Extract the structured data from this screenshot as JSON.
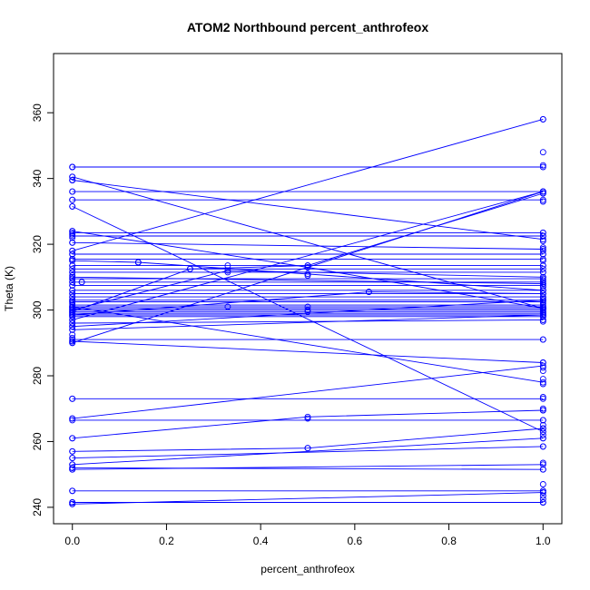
{
  "chart_data": {
    "type": "line",
    "title": "ATOM2 Northbound percent_anthrofeox",
    "xlabel": "percent_anthrofeox",
    "ylabel": "Theta (K)",
    "xlim": [
      -0.04,
      1.04
    ],
    "ylim": [
      235,
      378
    ],
    "xticks": [
      0.0,
      0.2,
      0.4,
      0.6,
      0.8,
      1.0
    ],
    "xtick_labels": [
      "0.0",
      "0.2",
      "0.4",
      "0.6",
      "0.8",
      "1.0"
    ],
    "yticks": [
      240,
      260,
      280,
      300,
      320,
      340,
      360
    ],
    "ytick_labels": [
      "240",
      "260",
      "280",
      "300",
      "320",
      "340",
      "360"
    ],
    "grid": false,
    "color": "#0000ff",
    "series": [
      {
        "x": [
          0,
          1
        ],
        "y": [
          343.5,
          343.5
        ]
      },
      {
        "x": [
          0,
          1
        ],
        "y": [
          340.5,
          300.5
        ]
      },
      {
        "x": [
          0,
          1
        ],
        "y": [
          339.5,
          321.5
        ]
      },
      {
        "x": [
          0,
          1
        ],
        "y": [
          336,
          336
        ]
      },
      {
        "x": [
          0,
          1
        ],
        "y": [
          333.5,
          333.5
        ]
      },
      {
        "x": [
          0,
          1
        ],
        "y": [
          331.5,
          263
        ]
      },
      {
        "x": [
          0,
          0.5,
          1
        ],
        "y": [
          324,
          313,
          300.5
        ]
      },
      {
        "x": [
          0,
          1
        ],
        "y": [
          323.5,
          323.5
        ]
      },
      {
        "x": [
          0,
          1
        ],
        "y": [
          322.5,
          322.5
        ]
      },
      {
        "x": [
          0,
          1
        ],
        "y": [
          320.5,
          318.5
        ]
      },
      {
        "x": [
          0,
          1
        ],
        "y": [
          318,
          358
        ]
      },
      {
        "x": [
          0,
          1
        ],
        "y": [
          317,
          317
        ]
      },
      {
        "x": [
          0,
          1
        ],
        "y": [
          315.5,
          315.5
        ]
      },
      {
        "x": [
          0,
          0.14,
          1
        ],
        "y": [
          315,
          314.5,
          306
        ]
      },
      {
        "x": [
          0,
          1
        ],
        "y": [
          313.5,
          313.5
        ]
      },
      {
        "x": [
          0,
          1
        ],
        "y": [
          312.5,
          312.5
        ]
      },
      {
        "x": [
          0,
          1
        ],
        "y": [
          311.5,
          311.5
        ]
      },
      {
        "x": [
          0,
          1
        ],
        "y": [
          310,
          308
        ]
      },
      {
        "x": [
          0,
          1
        ],
        "y": [
          309.5,
          309.5
        ]
      },
      {
        "x": [
          0,
          0.02,
          1
        ],
        "y": [
          308.5,
          308.5,
          308.5
        ]
      },
      {
        "x": [
          0,
          1
        ],
        "y": [
          307.5,
          307.5
        ]
      },
      {
        "x": [
          0,
          1
        ],
        "y": [
          306,
          306
        ]
      },
      {
        "x": [
          0,
          1
        ],
        "y": [
          305,
          305
        ]
      },
      {
        "x": [
          0,
          1
        ],
        "y": [
          304,
          304
        ]
      },
      {
        "x": [
          0,
          1
        ],
        "y": [
          303,
          303
        ]
      },
      {
        "x": [
          0,
          1
        ],
        "y": [
          302.5,
          302.5
        ]
      },
      {
        "x": [
          0,
          1
        ],
        "y": [
          301.5,
          301.5
        ]
      },
      {
        "x": [
          0,
          1
        ],
        "y": [
          301,
          301
        ]
      },
      {
        "x": [
          0,
          1
        ],
        "y": [
          300.5,
          300.5
        ]
      },
      {
        "x": [
          0,
          1
        ],
        "y": [
          300,
          300
        ]
      },
      {
        "x": [
          0,
          1
        ],
        "y": [
          299.5,
          299.5
        ]
      },
      {
        "x": [
          0,
          1
        ],
        "y": [
          299,
          299
        ]
      },
      {
        "x": [
          0,
          1
        ],
        "y": [
          298.5,
          298.5
        ]
      },
      {
        "x": [
          0,
          1
        ],
        "y": [
          298,
          298
        ]
      },
      {
        "x": [
          0,
          1
        ],
        "y": [
          297,
          336
        ]
      },
      {
        "x": [
          0,
          0.25,
          0.5,
          1
        ],
        "y": [
          299.5,
          312.5,
          313.5,
          335.5
        ]
      },
      {
        "x": [
          0,
          0.33,
          1
        ],
        "y": [
          300,
          312,
          310
        ]
      },
      {
        "x": [
          0,
          0.63,
          1
        ],
        "y": [
          298.5,
          305.5,
          305
        ]
      },
      {
        "x": [
          0,
          1
        ],
        "y": [
          296,
          297
        ]
      },
      {
        "x": [
          0,
          1
        ],
        "y": [
          295,
          303
        ]
      },
      {
        "x": [
          0,
          1
        ],
        "y": [
          294,
          298.5
        ]
      },
      {
        "x": [
          0,
          1
        ],
        "y": [
          291,
          291
        ]
      },
      {
        "x": [
          0,
          1
        ],
        "y": [
          290.5,
          284
        ]
      },
      {
        "x": [
          0,
          1
        ],
        "y": [
          290,
          336
        ]
      },
      {
        "x": [
          0,
          1
        ],
        "y": [
          301,
          278
        ]
      },
      {
        "x": [
          0,
          1
        ],
        "y": [
          273,
          273
        ]
      },
      {
        "x": [
          0,
          1
        ],
        "y": [
          267,
          283
        ]
      },
      {
        "x": [
          0,
          0.5,
          1
        ],
        "y": [
          261,
          267.5,
          269.5
        ]
      },
      {
        "x": [
          0,
          1
        ],
        "y": [
          266.5,
          266.5
        ]
      },
      {
        "x": [
          0,
          0.5,
          1
        ],
        "y": [
          257,
          258,
          264
        ]
      },
      {
        "x": [
          0,
          1
        ],
        "y": [
          255,
          258.5
        ]
      },
      {
        "x": [
          0,
          1
        ],
        "y": [
          253,
          261
        ]
      },
      {
        "x": [
          0,
          1
        ],
        "y": [
          252,
          251.5
        ]
      },
      {
        "x": [
          0,
          1
        ],
        "y": [
          251.5,
          253
        ]
      },
      {
        "x": [
          0,
          1
        ],
        "y": [
          245,
          245
        ]
      },
      {
        "x": [
          0,
          1
        ],
        "y": [
          241,
          244.5
        ]
      },
      {
        "x": [
          0,
          1
        ],
        "y": [
          241.5,
          241.5
        ]
      }
    ],
    "extra_points": {
      "x0": [
        343.5,
        340.5,
        339.5,
        336,
        333.5,
        331.5,
        324,
        323,
        322,
        320.5,
        318,
        317,
        315.5,
        315,
        313.5,
        311.5,
        310.5,
        309.5,
        308.5,
        307.5,
        306,
        305,
        304,
        303,
        302.5,
        302,
        301,
        300.5,
        300,
        299.5,
        299,
        298.5,
        298,
        297,
        296,
        295,
        294,
        292.5,
        291.5,
        290.5,
        290,
        273,
        267,
        261,
        257,
        255,
        253,
        252,
        251.5,
        245,
        241.5,
        241
      ],
      "x1": [
        358,
        348,
        344,
        336,
        335.5,
        333,
        323.5,
        322.5,
        321,
        319,
        318,
        317,
        315,
        313.5,
        311.5,
        310,
        309,
        308,
        307,
        306,
        305,
        304,
        303.5,
        302,
        301,
        300.5,
        300,
        299.5,
        299,
        298.5,
        298,
        297,
        296.5,
        291,
        284,
        282.5,
        281.5,
        279,
        277.5,
        273.5,
        270,
        269.5,
        266.5,
        265,
        264,
        263,
        262,
        261,
        258.5,
        253.5,
        251.5,
        247,
        245,
        244.5,
        243.5,
        242.5,
        241.5
      ],
      "mid": [
        {
          "x": 0.5,
          "y": 313.5
        },
        {
          "x": 0.5,
          "y": 311
        },
        {
          "x": 0.5,
          "y": 310.5
        },
        {
          "x": 0.5,
          "y": 301
        },
        {
          "x": 0.5,
          "y": 300
        },
        {
          "x": 0.5,
          "y": 299.5
        },
        {
          "x": 0.5,
          "y": 267
        },
        {
          "x": 0.5,
          "y": 258
        },
        {
          "x": 0.33,
          "y": 313.5
        },
        {
          "x": 0.33,
          "y": 311.5
        },
        {
          "x": 0.33,
          "y": 301
        },
        {
          "x": 0.25,
          "y": 312.5
        },
        {
          "x": 0.14,
          "y": 314.5
        },
        {
          "x": 0.63,
          "y": 305.5
        },
        {
          "x": 0.02,
          "y": 308.5
        }
      ]
    }
  }
}
